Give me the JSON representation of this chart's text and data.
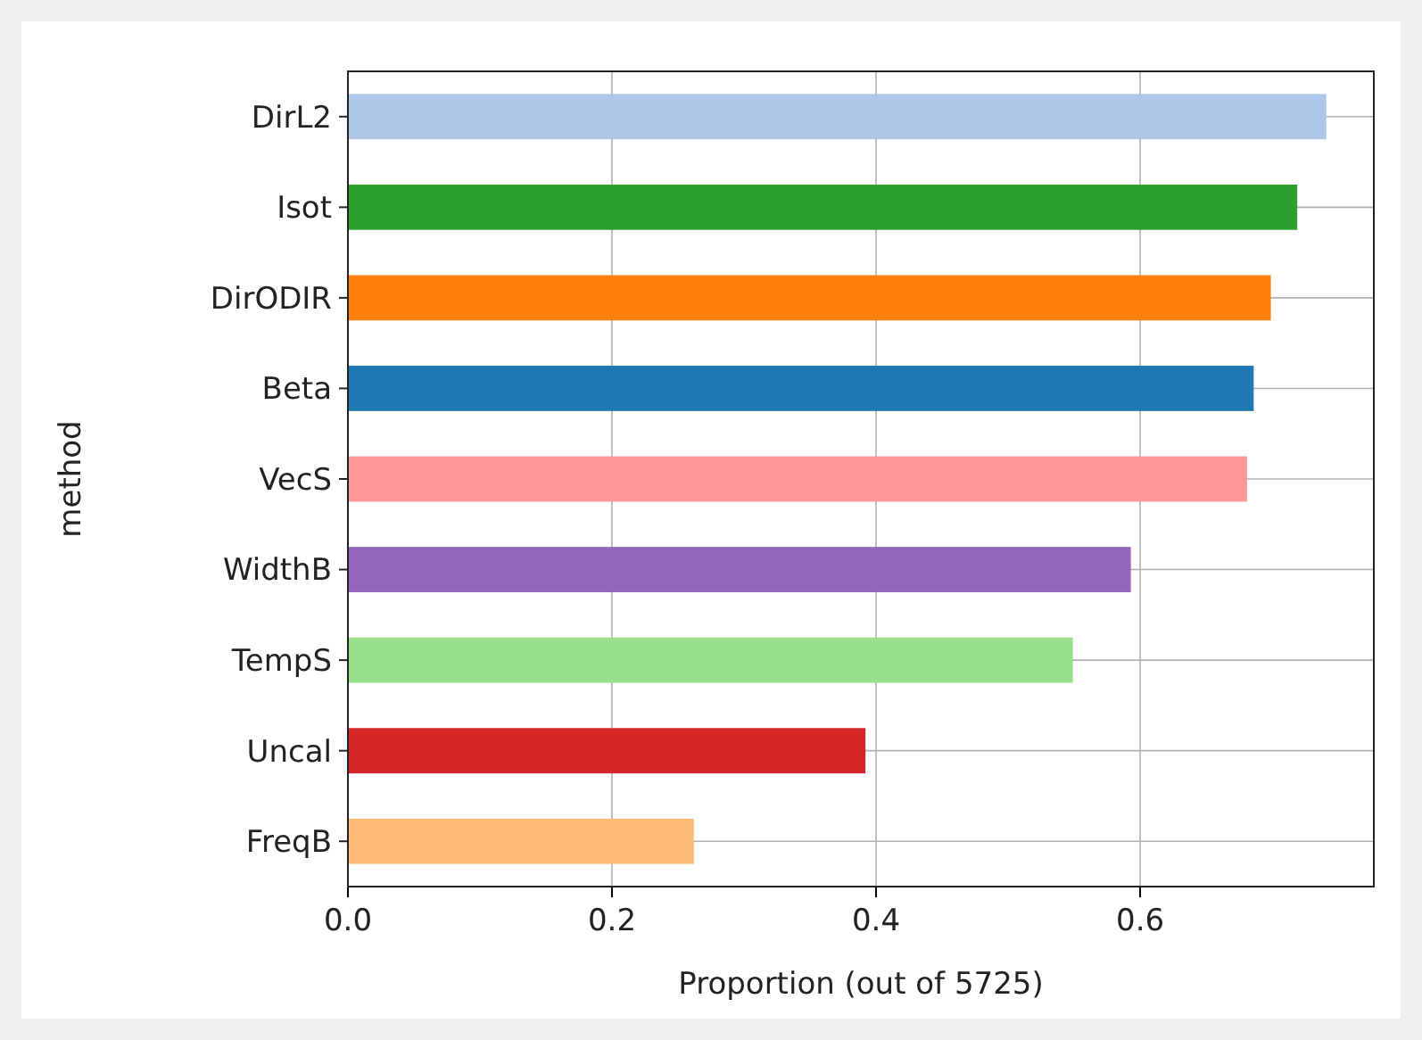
{
  "chart_data": {
    "type": "bar",
    "orientation": "horizontal",
    "xlabel": "Proportion (out of 5725)",
    "ylabel": "method",
    "categories": [
      "DirL2",
      "Isot",
      "DirODIR",
      "Beta",
      "VecS",
      "WidthB",
      "TempS",
      "Uncal",
      "FreqB"
    ],
    "values": [
      0.741,
      0.719,
      0.699,
      0.686,
      0.681,
      0.593,
      0.549,
      0.392,
      0.262
    ],
    "colors": [
      "#aec7e8",
      "#2ca02c",
      "#ff7f0e",
      "#1f77b4",
      "#ff9896",
      "#9467bd",
      "#98df8a",
      "#d62728",
      "#ffbb78"
    ],
    "xlim": [
      0,
      0.777
    ],
    "xticks": [
      {
        "value": 0,
        "label": "0.0"
      },
      {
        "value": 0.2,
        "label": "0.2"
      },
      {
        "value": 0.4,
        "label": "0.4"
      },
      {
        "value": 0.6,
        "label": "0.6"
      }
    ],
    "grid": true
  }
}
